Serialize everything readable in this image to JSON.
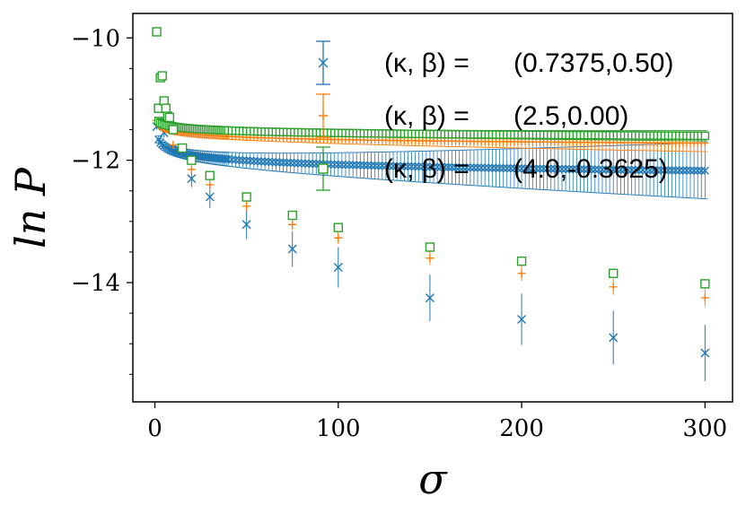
{
  "chart_data": {
    "type": "scatter",
    "title": "",
    "xlabel": "σ",
    "ylabel": "ln P",
    "xlim": [
      -12,
      315
    ],
    "ylim": [
      -15.95,
      -9.6
    ],
    "xticks": [
      0,
      100,
      200,
      300
    ],
    "xtick_labels": [
      "0",
      "100",
      "200",
      "300"
    ],
    "yticks": [
      -10,
      -12,
      -14
    ],
    "ytick_labels": [
      "−10",
      "−12",
      "−14"
    ],
    "grid": false,
    "legend_position": "top-right",
    "series": [
      {
        "name": "(κ, β) =(0.7375,0.50)",
        "label_math": "(κ, β) =",
        "label_values": "(0.7375,0.50)",
        "marker": "x",
        "color": "#1f77b4",
        "points": [
          {
            "x": 1,
            "y": -11.45,
            "err": 0.05
          },
          {
            "x": 5,
            "y": -11.55,
            "err": 0.08
          },
          {
            "x": 10,
            "y": -11.8,
            "err": 0.1
          },
          {
            "x": 20,
            "y": -12.3,
            "err": 0.14
          },
          {
            "x": 30,
            "y": -12.6,
            "err": 0.18
          },
          {
            "x": 50,
            "y": -13.05,
            "err": 0.24
          },
          {
            "x": 75,
            "y": -13.45,
            "err": 0.29
          },
          {
            "x": 100,
            "y": -13.75,
            "err": 0.33
          },
          {
            "x": 150,
            "y": -14.25,
            "err": 0.38
          },
          {
            "x": 200,
            "y": -14.6,
            "err": 0.42
          },
          {
            "x": 250,
            "y": -14.9,
            "err": 0.44
          },
          {
            "x": 300,
            "y": -15.15,
            "err": 0.46
          }
        ]
      },
      {
        "name": "(κ, β) =(2.5,0.00)",
        "label_math": "(κ, β) =",
        "label_values": "(2.5,0.00)",
        "marker": "+",
        "color": "#ff7f0e",
        "points": [
          {
            "x": 1,
            "y": -11.35,
            "err": 0.03
          },
          {
            "x": 5,
            "y": -11.45,
            "err": 0.04
          },
          {
            "x": 10,
            "y": -11.75,
            "err": 0.05
          },
          {
            "x": 20,
            "y": -12.15,
            "err": 0.06
          },
          {
            "x": 30,
            "y": -12.4,
            "err": 0.07
          },
          {
            "x": 50,
            "y": -12.75,
            "err": 0.08
          },
          {
            "x": 75,
            "y": -13.05,
            "err": 0.09
          },
          {
            "x": 100,
            "y": -13.27,
            "err": 0.1
          },
          {
            "x": 150,
            "y": -13.6,
            "err": 0.11
          },
          {
            "x": 200,
            "y": -13.85,
            "err": 0.12
          },
          {
            "x": 250,
            "y": -14.07,
            "err": 0.13
          },
          {
            "x": 300,
            "y": -14.25,
            "err": 0.14
          }
        ]
      },
      {
        "name": "(κ, β) =(4.0,-0.3625)",
        "label_math": "(κ, β) =",
        "label_values": "(4.0,-0.3625)",
        "marker": "s",
        "color": "#2ca02c",
        "points": [
          {
            "x": 1,
            "y": -9.9,
            "err": 0.04
          },
          {
            "x": 2,
            "y": -11.15,
            "err": 0.04
          },
          {
            "x": 3,
            "y": -10.65,
            "err": 0.05
          },
          {
            "x": 4,
            "y": -10.62,
            "err": 0.05
          },
          {
            "x": 5,
            "y": -11.03,
            "err": 0.04
          },
          {
            "x": 6,
            "y": -11.15,
            "err": 0.04
          },
          {
            "x": 7,
            "y": -11.28,
            "err": 0.04
          },
          {
            "x": 8,
            "y": -11.3,
            "err": 0.04
          },
          {
            "x": 10,
            "y": -11.5,
            "err": 0.04
          },
          {
            "x": 15,
            "y": -11.8,
            "err": 0.05
          },
          {
            "x": 20,
            "y": -12.0,
            "err": 0.05
          },
          {
            "x": 30,
            "y": -12.25,
            "err": 0.05
          },
          {
            "x": 50,
            "y": -12.6,
            "err": 0.06
          },
          {
            "x": 75,
            "y": -12.9,
            "err": 0.06
          },
          {
            "x": 100,
            "y": -13.1,
            "err": 0.07
          },
          {
            "x": 150,
            "y": -13.42,
            "err": 0.07
          },
          {
            "x": 200,
            "y": -13.65,
            "err": 0.08
          },
          {
            "x": 250,
            "y": -13.85,
            "err": 0.08
          },
          {
            "x": 300,
            "y": -14.02,
            "err": 0.08
          }
        ]
      }
    ],
    "series_curves": [
      {
        "a": -11.55,
        "b": -12.17,
        "c": 0.82,
        "err0": 0.06,
        "err1": 0.46
      },
      {
        "a": -11.35,
        "b": -11.72,
        "c": 0.8,
        "err0": 0.03,
        "err1": 0.14
      },
      {
        "a": -11.3,
        "b": -11.6,
        "c": 0.78,
        "err0": 0.04,
        "err1": 0.085
      }
    ]
  }
}
